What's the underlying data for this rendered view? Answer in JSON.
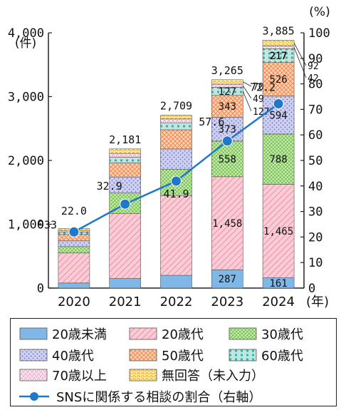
{
  "chart_data": {
    "type": "bar",
    "stacked": true,
    "categories": [
      "2020",
      "2021",
      "2022",
      "2023",
      "2024"
    ],
    "x_unit": "(年)",
    "y_left_unit": "(件)",
    "y_right_unit": "(%)",
    "y_left_ticks": [
      "0",
      "1,000",
      "2,000",
      "3,000",
      "4,000"
    ],
    "y_right_ticks": [
      "0",
      "10",
      "20",
      "30",
      "40",
      "50",
      "60",
      "70",
      "80",
      "90",
      "100"
    ],
    "ylim_left": [
      0,
      4000
    ],
    "ylim_right": [
      0,
      100
    ],
    "totals": [
      933,
      2181,
      2709,
      3265,
      3885
    ],
    "totals_labels": [
      "933",
      "2,181",
      "2,709",
      "3,265",
      "3,885"
    ],
    "series": [
      {
        "name": "20歳未満",
        "values": [
          80,
          150,
          200,
          287,
          161
        ],
        "labels": [
          "",
          "",
          "",
          "287",
          "161"
        ],
        "color": "#7fb7e6"
      },
      {
        "name": "20歳代",
        "values": [
          470,
          1020,
          1250,
          1458,
          1465
        ],
        "labels": [
          "",
          "",
          "",
          "1,458",
          "1,465"
        ],
        "color": "#f7b6c4"
      },
      {
        "name": "30歳代",
        "values": [
          100,
          320,
          410,
          558,
          788
        ],
        "labels": [
          "",
          "",
          "",
          "558",
          "788"
        ],
        "color": "#a9dd8c"
      },
      {
        "name": "40歳代",
        "values": [
          90,
          250,
          320,
          373,
          594
        ],
        "labels": [
          "",
          "",
          "",
          "373",
          "594"
        ],
        "color": "#c2c5ee"
      },
      {
        "name": "50歳代",
        "values": [
          100,
          220,
          300,
          343,
          526
        ],
        "labels": [
          "",
          "",
          "",
          "343",
          "526"
        ],
        "color": "#f9c2a0"
      },
      {
        "name": "60歳代",
        "values": [
          40,
          90,
          110,
          127,
          217
        ],
        "labels": [
          "",
          "",
          "",
          "127",
          "217"
        ],
        "color": "#8fd3cb"
      },
      {
        "name": "70歳以上",
        "values": [
          23,
          60,
          60,
          49,
          42
        ],
        "labels": [
          "",
          "",
          "",
          "49",
          "42"
        ],
        "color": "#f4c8e0"
      },
      {
        "name": "無回答（未入力）",
        "values": [
          30,
          71,
          59,
          70,
          92
        ],
        "labels": [
          "",
          "",
          "",
          "70",
          "92"
        ],
        "color": "#f6dc7a"
      }
    ],
    "line": {
      "name": "SNSに関係する相談の割合（右軸）",
      "values": [
        22.0,
        32.9,
        41.9,
        57.6,
        72.2
      ],
      "labels": [
        "22.0",
        "32.9",
        "41.9",
        "57.6",
        "72.2"
      ],
      "color": "#1f78c8"
    },
    "legend_placement": "bottom",
    "grid": false
  }
}
